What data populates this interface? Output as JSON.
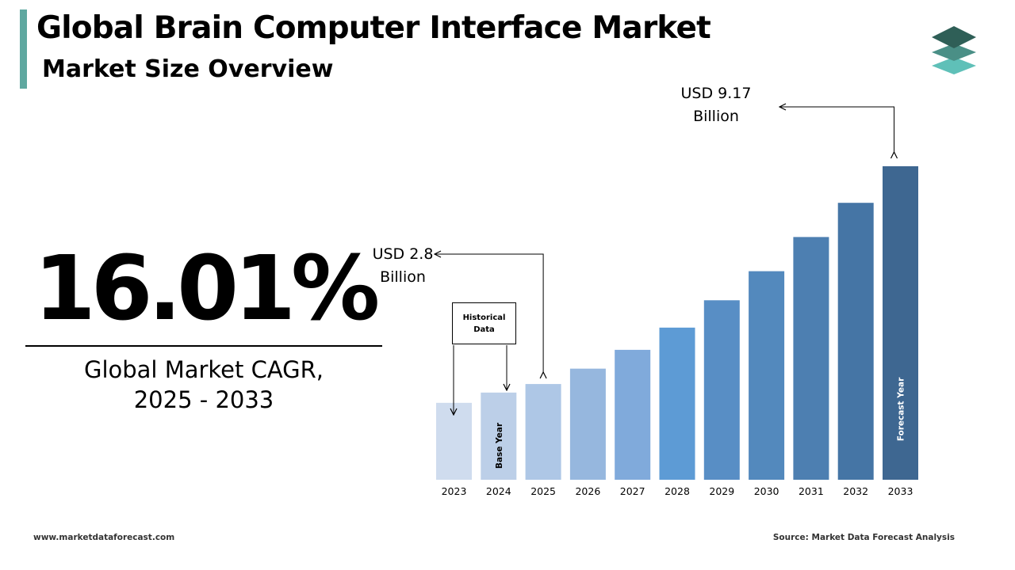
{
  "header": {
    "title": "Global Brain Computer Interface Market",
    "subtitle": "Market Size Overview"
  },
  "cagr": {
    "value": "16.01%",
    "label_line1": "Global Market CAGR,",
    "label_line2": "2025 - 2033"
  },
  "annotations": {
    "start_value_line1": "USD 2.8",
    "start_value_line2": "Billion",
    "end_value_line1": "USD 9.17",
    "end_value_line2": "Billion",
    "historical_line1": "Historical",
    "historical_line2": "Data",
    "base_year_label": "Base Year",
    "forecast_year_label": "Forecast Year"
  },
  "footer": {
    "website": "www.marketdataforecast.com",
    "source": "Source: Market Data Forecast Analysis"
  },
  "colors": {
    "accent": "#5fa8a0",
    "logo_top": "#2f5f57",
    "logo_mid": "#4a8f86",
    "logo_bottom": "#5fc0b8",
    "arrows": "#000000"
  },
  "chart_data": {
    "type": "bar",
    "categories": [
      "2023",
      "2024",
      "2025",
      "2026",
      "2027",
      "2028",
      "2029",
      "2030",
      "2031",
      "2032",
      "2033"
    ],
    "values": [
      2.25,
      2.55,
      2.8,
      3.25,
      3.8,
      4.45,
      5.25,
      6.1,
      7.1,
      8.1,
      9.17
    ],
    "ylim": [
      0,
      9.17
    ],
    "grid": false,
    "legend": "none",
    "colors": [
      "#cfdcee",
      "#bccfe8",
      "#aec7e6",
      "#96b7de",
      "#80aadb",
      "#5d9bd5",
      "#588ec5",
      "#5389bd",
      "#4d7fb1",
      "#4575a5",
      "#3e6791"
    ]
  }
}
